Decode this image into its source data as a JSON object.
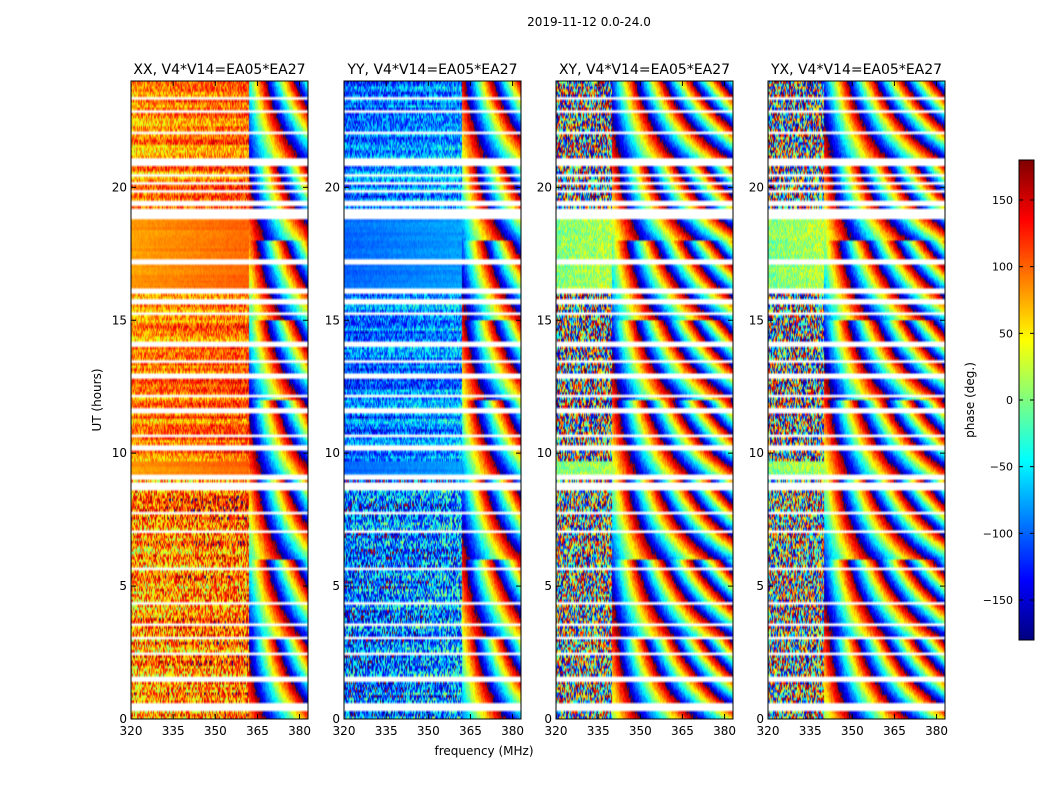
{
  "figure": {
    "suptitle": "2019-11-12 0.0-24.0"
  },
  "chart_data": {
    "type": "heatmap",
    "panels": [
      {
        "title": "XX, V4*V14=EA05*EA27",
        "base": 80,
        "noise": 25,
        "wrap_cutoff": 362,
        "amp": 0.5
      },
      {
        "title": "YY, V4*V14=EA05*EA27",
        "base": -100,
        "noise": 30,
        "wrap_cutoff": 362,
        "amp": 0.5
      },
      {
        "title": "XY, V4*V14=EA05*EA27",
        "base": 0,
        "noise": 120,
        "wrap_cutoff": 340,
        "amp": 1.0
      },
      {
        "title": "YX, V4*V14=EA05*EA27",
        "base": 0,
        "noise": 120,
        "wrap_cutoff": 340,
        "amp": 1.0
      }
    ],
    "x": {
      "label": "frequency (MHz)",
      "range": [
        320,
        383
      ],
      "ticks": [
        320,
        335,
        350,
        365,
        380
      ]
    },
    "y": {
      "label": "UT (hours)",
      "range": [
        0,
        24
      ],
      "ticks": [
        0,
        5,
        10,
        15,
        20
      ]
    },
    "colorbar": {
      "label": "phase (deg.)",
      "range": [
        -180,
        180
      ],
      "ticks": [
        -150,
        -100,
        -50,
        0,
        50,
        100,
        150
      ],
      "tick_labels": [
        "−150",
        "−100",
        "−50",
        "0",
        "50",
        "100",
        "150"
      ],
      "colormap": [
        "#00007f",
        "#0000ff",
        "#007fff",
        "#00ffff",
        "#7fff7f",
        "#ffff00",
        "#ff7f00",
        "#ff0000",
        "#7f0000"
      ]
    },
    "flagged_ut_intervals": [
      [
        0.35,
        0.45
      ],
      [
        0.55,
        0.6
      ],
      [
        1.42,
        1.52
      ],
      [
        2.4,
        2.5
      ],
      [
        3.02,
        3.07
      ],
      [
        3.5,
        3.6
      ],
      [
        4.3,
        4.35
      ],
      [
        5.6,
        5.65
      ],
      [
        7.0,
        7.05
      ],
      [
        7.7,
        7.75
      ],
      [
        8.6,
        8.9
      ],
      [
        9.03,
        9.12
      ],
      [
        10.2,
        10.28
      ],
      [
        10.6,
        10.65
      ],
      [
        11.6,
        11.65
      ],
      [
        12.1,
        12.18
      ],
      [
        12.85,
        12.95
      ],
      [
        13.4,
        13.45
      ],
      [
        14.1,
        14.16
      ],
      [
        15.2,
        15.28
      ],
      [
        15.7,
        15.74
      ],
      [
        16.0,
        16.1
      ],
      [
        17.2,
        17.25
      ],
      [
        18.9,
        19.1
      ],
      [
        19.4,
        19.47
      ],
      [
        19.8,
        19.84
      ],
      [
        20.1,
        20.2
      ],
      [
        20.45,
        20.5
      ],
      [
        20.9,
        21.05
      ],
      [
        22.0,
        22.07
      ],
      [
        22.8,
        22.86
      ],
      [
        23.3,
        23.34
      ]
    ]
  }
}
